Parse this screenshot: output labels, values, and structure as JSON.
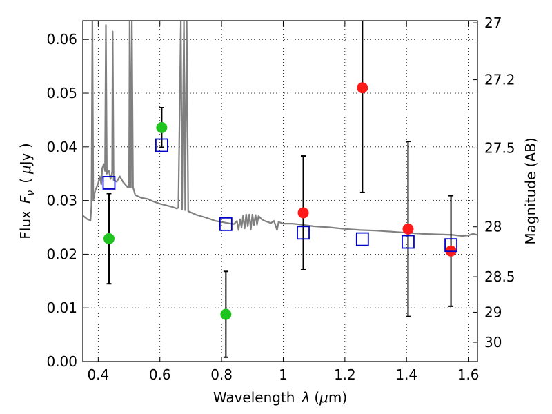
{
  "chart_data": {
    "type": "scatter",
    "xlabel_text": "Wavelength",
    "xlabel_symbol": "λ",
    "xlabel_unit_open": "(",
    "xlabel_unit_mu": "μ",
    "xlabel_unit_rest": "m)",
    "ylabel_text": "Flux",
    "ylabel_symbol": "F",
    "ylabel_subscript": "ν",
    "ylabel_unit_open": "(",
    "ylabel_unit_mu": "μ",
    "ylabel_unit_rest": "Jy )",
    "y2label": "Magnitude (AB)",
    "xlim": [
      0.35,
      1.63
    ],
    "ylim": [
      0.0,
      0.0635
    ],
    "grid": true,
    "x_ticks": [
      {
        "value": 0.4,
        "label": "0.4"
      },
      {
        "value": 0.6,
        "label": "0.6"
      },
      {
        "value": 0.8,
        "label": "0.8"
      },
      {
        "value": 1.0,
        "label": "1"
      },
      {
        "value": 1.2,
        "label": "1.2"
      },
      {
        "value": 1.4,
        "label": "1.4"
      },
      {
        "value": 1.6,
        "label": "1.6"
      }
    ],
    "y_ticks": [
      {
        "value": 0.0,
        "label": "0.00"
      },
      {
        "value": 0.01,
        "label": "0.01"
      },
      {
        "value": 0.02,
        "label": "0.02"
      },
      {
        "value": 0.03,
        "label": "0.03"
      },
      {
        "value": 0.04,
        "label": "0.04"
      },
      {
        "value": 0.05,
        "label": "0.05"
      },
      {
        "value": 0.06,
        "label": "0.06"
      }
    ],
    "y2_ticks": [
      {
        "flux": 0.0631,
        "label": "27"
      },
      {
        "flux": 0.0525,
        "label": "27.2"
      },
      {
        "flux": 0.0398,
        "label": "27.5"
      },
      {
        "flux": 0.0251,
        "label": "28"
      },
      {
        "flux": 0.0158,
        "label": "28.5"
      },
      {
        "flux": 0.0092,
        "label": "29"
      },
      {
        "flux": 0.0036,
        "label": "30"
      }
    ],
    "series": [
      {
        "kind": "marker",
        "marker": "circle",
        "color": "#1ec31e",
        "points": [
          {
            "x": 0.435,
            "y": 0.0229,
            "err": 0.0084
          },
          {
            "x": 0.606,
            "y": 0.0436,
            "err": 0.0037
          },
          {
            "x": 0.814,
            "y": 0.0088,
            "err": 0.008
          }
        ]
      },
      {
        "kind": "marker",
        "marker": "circle",
        "color": "#ff1a1a",
        "points": [
          {
            "x": 1.065,
            "y": 0.0277,
            "err": 0.0106
          },
          {
            "x": 1.257,
            "y": 0.051,
            "err": 0.0195
          },
          {
            "x": 1.405,
            "y": 0.0247,
            "err": 0.0163
          },
          {
            "x": 1.544,
            "y": 0.0206,
            "err": 0.0103
          }
        ]
      },
      {
        "kind": "marker",
        "marker": "open-square",
        "color": "#0000cc",
        "points": [
          {
            "x": 0.435,
            "y": 0.0333
          },
          {
            "x": 0.606,
            "y": 0.0403
          },
          {
            "x": 0.814,
            "y": 0.0256
          },
          {
            "x": 1.065,
            "y": 0.024
          },
          {
            "x": 1.257,
            "y": 0.0228
          },
          {
            "x": 1.405,
            "y": 0.0223
          },
          {
            "x": 1.544,
            "y": 0.0217
          }
        ]
      },
      {
        "kind": "line",
        "color": "#808080",
        "points": [
          [
            0.35,
            0.0272
          ],
          [
            0.365,
            0.0265
          ],
          [
            0.375,
            0.0263
          ],
          [
            0.378,
            0.029
          ],
          [
            0.381,
            0.0635
          ],
          [
            0.384,
            0.03
          ],
          [
            0.39,
            0.0318
          ],
          [
            0.4,
            0.0332
          ],
          [
            0.405,
            0.0345
          ],
          [
            0.41,
            0.033
          ],
          [
            0.413,
            0.036
          ],
          [
            0.418,
            0.0368
          ],
          [
            0.422,
            0.0355
          ],
          [
            0.425,
            0.0627
          ],
          [
            0.428,
            0.035
          ],
          [
            0.435,
            0.0355
          ],
          [
            0.44,
            0.034
          ],
          [
            0.445,
            0.0352
          ],
          [
            0.447,
            0.0615
          ],
          [
            0.45,
            0.0338
          ],
          [
            0.46,
            0.0335
          ],
          [
            0.47,
            0.0345
          ],
          [
            0.48,
            0.0335
          ],
          [
            0.495,
            0.0325
          ],
          [
            0.5,
            0.0325
          ],
          [
            0.502,
            0.0635
          ],
          [
            0.506,
            0.0325
          ],
          [
            0.509,
            0.0635
          ],
          [
            0.513,
            0.0325
          ],
          [
            0.52,
            0.031
          ],
          [
            0.54,
            0.0305
          ],
          [
            0.56,
            0.0303
          ],
          [
            0.58,
            0.0298
          ],
          [
            0.6,
            0.0294
          ],
          [
            0.62,
            0.0291
          ],
          [
            0.64,
            0.0288
          ],
          [
            0.655,
            0.0285
          ],
          [
            0.66,
            0.0287
          ],
          [
            0.668,
            0.0635
          ],
          [
            0.672,
            0.0284
          ],
          [
            0.678,
            0.0635
          ],
          [
            0.682,
            0.0282
          ],
          [
            0.687,
            0.0635
          ],
          [
            0.692,
            0.028
          ],
          [
            0.7,
            0.0278
          ],
          [
            0.72,
            0.0273
          ],
          [
            0.75,
            0.0268
          ],
          [
            0.78,
            0.0262
          ],
          [
            0.8,
            0.026
          ],
          [
            0.82,
            0.0258
          ],
          [
            0.84,
            0.0256
          ],
          [
            0.85,
            0.0262
          ],
          [
            0.855,
            0.0245
          ],
          [
            0.86,
            0.0265
          ],
          [
            0.865,
            0.025
          ],
          [
            0.87,
            0.0272
          ],
          [
            0.875,
            0.0248
          ],
          [
            0.88,
            0.0274
          ],
          [
            0.885,
            0.0252
          ],
          [
            0.89,
            0.0274
          ],
          [
            0.895,
            0.0246
          ],
          [
            0.9,
            0.0274
          ],
          [
            0.905,
            0.0254
          ],
          [
            0.91,
            0.0273
          ],
          [
            0.915,
            0.0255
          ],
          [
            0.92,
            0.0271
          ],
          [
            0.93,
            0.0265
          ],
          [
            0.94,
            0.0262
          ],
          [
            0.95,
            0.026
          ],
          [
            0.96,
            0.0258
          ],
          [
            0.97,
            0.0262
          ],
          [
            0.98,
            0.0245
          ],
          [
            0.985,
            0.026
          ],
          [
            1.0,
            0.0257
          ],
          [
            1.03,
            0.0257
          ],
          [
            1.06,
            0.0255
          ],
          [
            1.1,
            0.0252
          ],
          [
            1.15,
            0.025
          ],
          [
            1.2,
            0.0247
          ],
          [
            1.25,
            0.0245
          ],
          [
            1.3,
            0.0244
          ],
          [
            1.35,
            0.0242
          ],
          [
            1.4,
            0.024
          ],
          [
            1.45,
            0.0238
          ],
          [
            1.5,
            0.0237
          ],
          [
            1.55,
            0.0236
          ],
          [
            1.58,
            0.0234
          ],
          [
            1.6,
            0.0235
          ],
          [
            1.615,
            0.0238
          ],
          [
            1.63,
            0.0236
          ]
        ]
      }
    ]
  }
}
